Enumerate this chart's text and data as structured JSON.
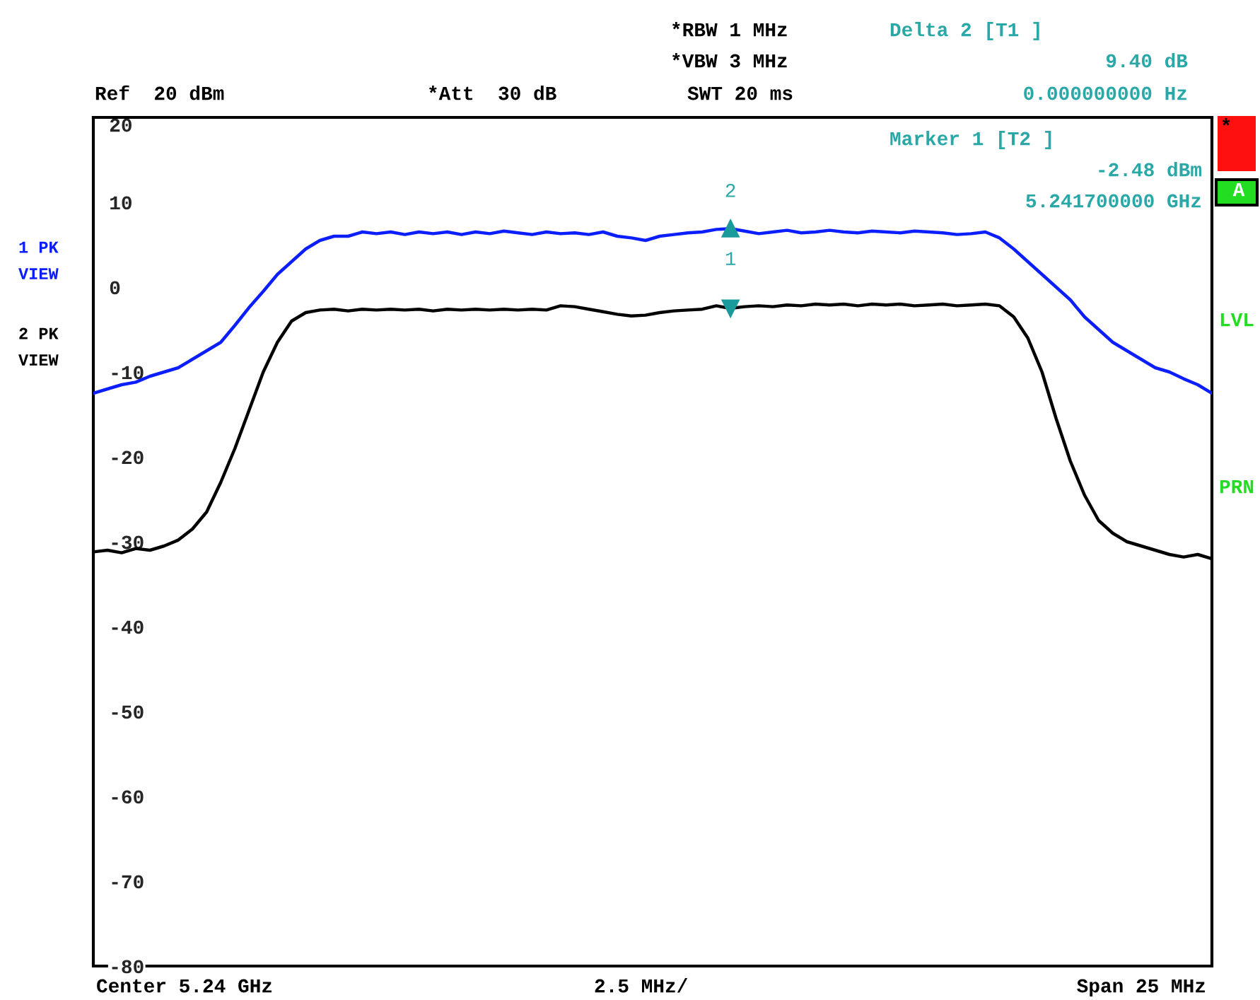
{
  "chart_data": {
    "type": "line",
    "categories": [
      null,
      null,
      null,
      null,
      null,
      null,
      null,
      null,
      null,
      null,
      null,
      null,
      null,
      null,
      null,
      null,
      null,
      null,
      null,
      null,
      null,
      null,
      null,
      null,
      null,
      null,
      null,
      null,
      null,
      null,
      null,
      null,
      null,
      null,
      null,
      null,
      null,
      null,
      null,
      null,
      null,
      null,
      null,
      null,
      null,
      null,
      null,
      null,
      null,
      null,
      null,
      null,
      null,
      null,
      null,
      null,
      null,
      null,
      null,
      null,
      null,
      null,
      null,
      null,
      null,
      null,
      null,
      null,
      null,
      null,
      null,
      null,
      null,
      null,
      null,
      null,
      null,
      null,
      null,
      null
    ],
    "series": [
      {
        "name": "1 PK\nVIEW",
        "color": "#0a1eff",
        "values": [
          -12.5,
          -12,
          -11.5,
          -11.2,
          -10.5,
          -10,
          -9.5,
          -8.5,
          -7.5,
          -6.5,
          -4.5,
          -2.4,
          -0.5,
          1.5,
          3,
          4.5,
          5.5,
          6,
          6,
          6.5,
          6.3,
          6.5,
          6.2,
          6.5,
          6.3,
          6.5,
          6.2,
          6.5,
          6.3,
          6.6,
          6.4,
          6.2,
          6.5,
          6.3,
          6.4,
          6.2,
          6.5,
          6.0,
          5.8,
          5.5,
          6.0,
          6.2,
          6.4,
          6.5,
          6.8,
          6.9,
          6.6,
          6.3,
          6.5,
          6.7,
          6.4,
          6.5,
          6.7,
          6.5,
          6.4,
          6.6,
          6.5,
          6.4,
          6.6,
          6.5,
          6.4,
          6.2,
          6.3,
          6.5,
          5.8,
          4.5,
          3,
          1.5,
          0,
          -1.5,
          -3.5,
          -5,
          -6.5,
          -7.5,
          -8.5,
          -9.5,
          -10,
          -10.8,
          -11.5,
          -12.5
        ]
      },
      {
        "name": "2 PK\nVIEW",
        "color": "#000000",
        "values": [
          -31.2,
          -31,
          -31.3,
          -30.8,
          -31,
          -30.5,
          -29.8,
          -28.5,
          -26.5,
          -23,
          -19,
          -14.5,
          -10,
          -6.5,
          -4,
          -3,
          -2.7,
          -2.6,
          -2.8,
          -2.6,
          -2.7,
          -2.6,
          -2.7,
          -2.6,
          -2.8,
          -2.6,
          -2.7,
          -2.6,
          -2.7,
          -2.6,
          -2.7,
          -2.6,
          -2.7,
          -2.2,
          -2.3,
          -2.6,
          -2.9,
          -3.2,
          -3.4,
          -3.3,
          -3.0,
          -2.8,
          -2.7,
          -2.6,
          -2.2,
          -2.5,
          -2.3,
          -2.2,
          -2.3,
          -2.1,
          -2.2,
          -2.0,
          -2.1,
          -2.0,
          -2.2,
          -2.0,
          -2.1,
          -2.0,
          -2.2,
          -2.1,
          -2.0,
          -2.2,
          -2.1,
          -2.0,
          -2.2,
          -3.5,
          -6,
          -10,
          -15.5,
          -20.5,
          -24.5,
          -27.5,
          -29,
          -30,
          -30.5,
          -31,
          -31.5,
          -31.8,
          -31.5,
          -32
        ]
      }
    ],
    "ylim": [
      -80,
      20
    ],
    "yticks": [
      20,
      10,
      0,
      -10,
      -20,
      -30,
      -40,
      -50,
      -60,
      -70,
      -80
    ],
    "grid": false,
    "legend": false,
    "tick_labels": "y",
    "line_style": "solid",
    "marker": "none",
    "annotations": [
      "*RBW 1 MHz",
      "*VBW 3 MHz",
      "Ref  20 dBm",
      "*Att  30 dB",
      "SWT 20 ms",
      "Delta 2 [T1 ]",
      "9.40 dB",
      "0.000000000 Hz",
      "Marker 1 [T2 ]",
      "-2.48 dBm",
      "5.241700000 GHz",
      "LVL",
      "PRN",
      "A",
      "*",
      "Center 5.24 GHz",
      "2.5 MHz/",
      "Span 25 MHz",
      {
        "text": "1",
        "y": -2.5
      },
      {
        "text": "2",
        "y": 6.9
      }
    ]
  }
}
